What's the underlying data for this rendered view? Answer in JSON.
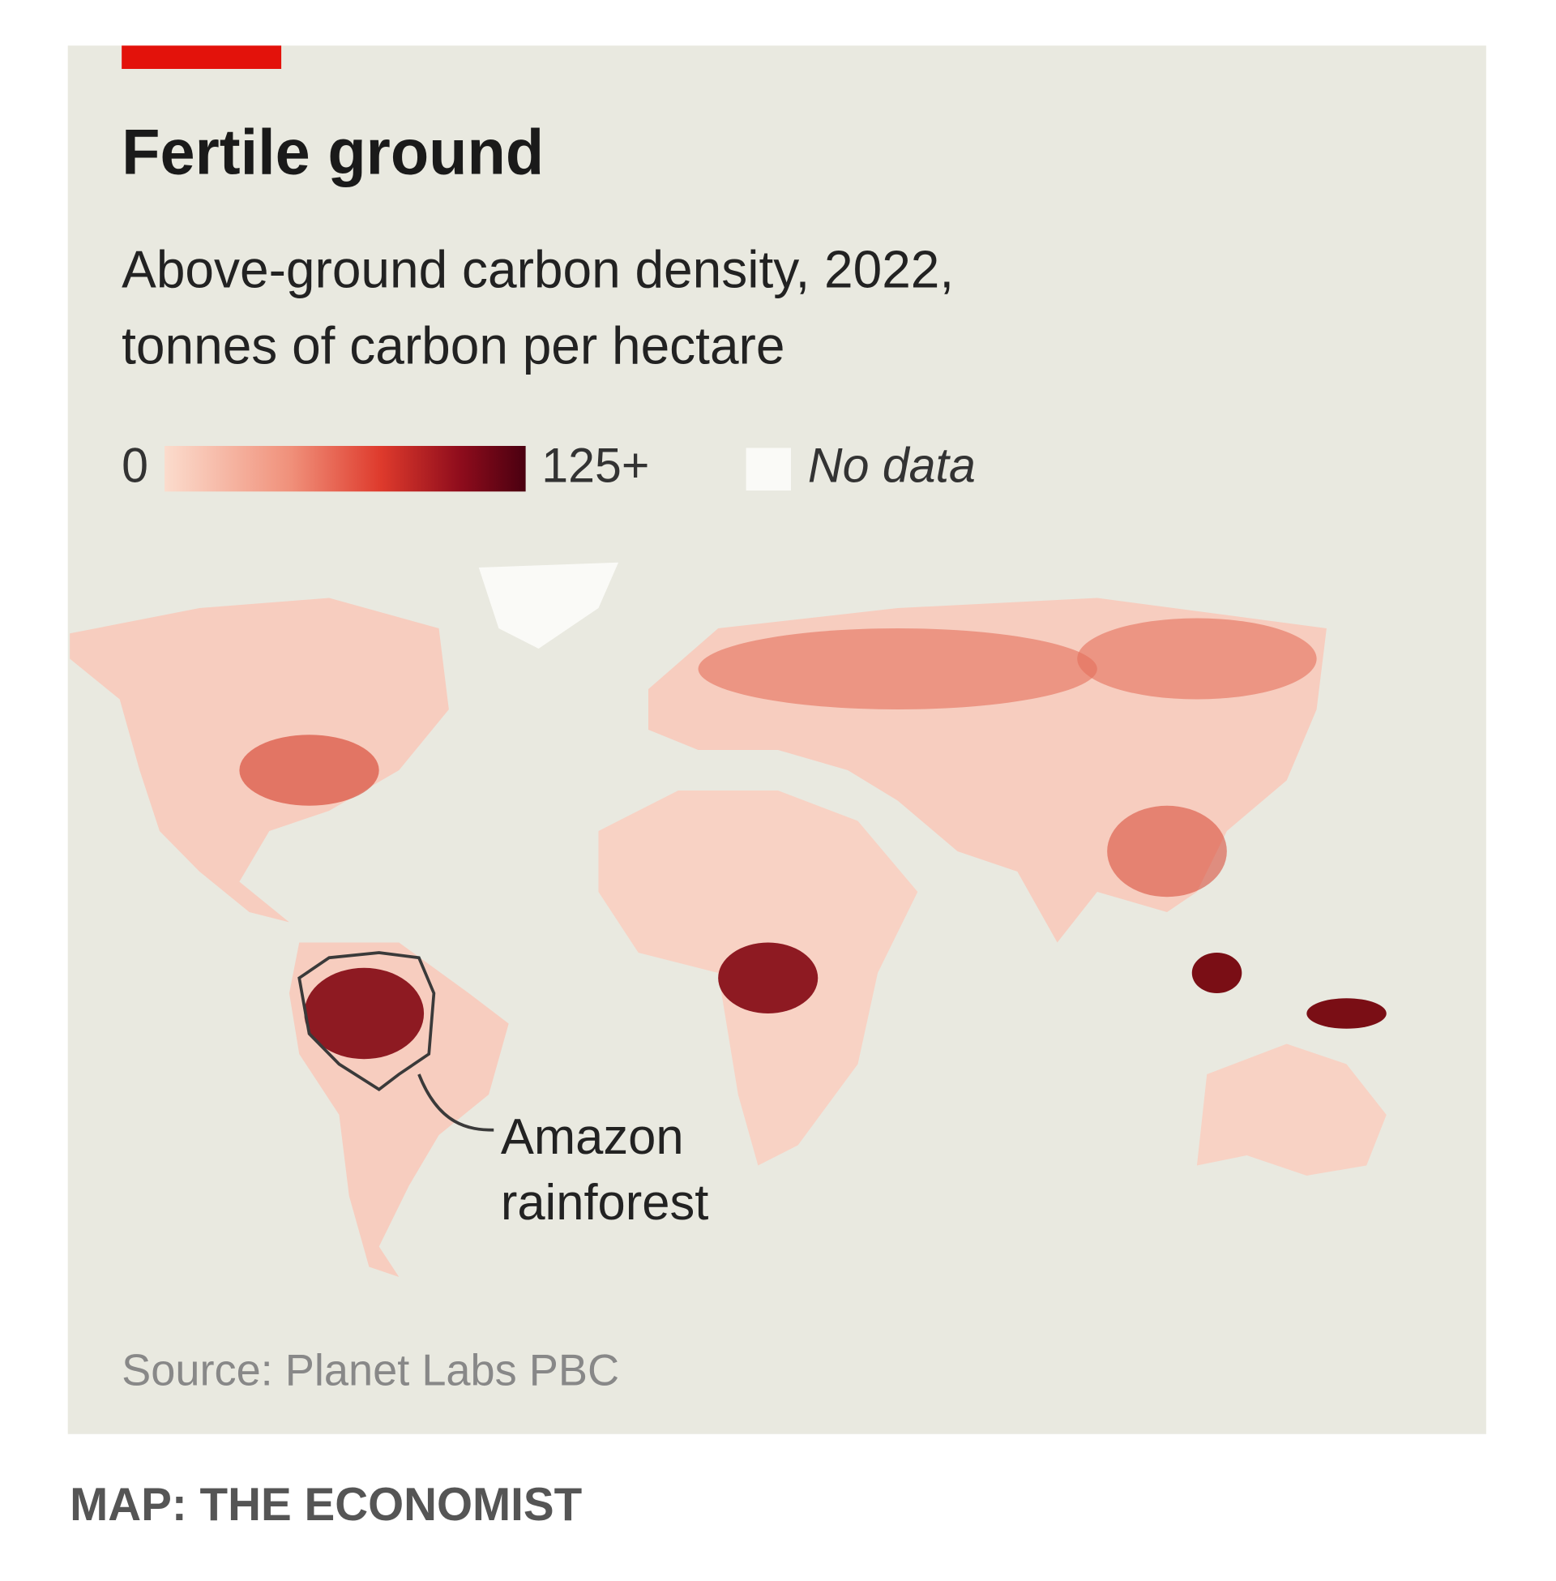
{
  "title": "Fertile ground",
  "subtitle": [
    "Above-ground carbon density, 2022,",
    "tonnes of carbon per hectare"
  ],
  "legend": {
    "min_label": "0",
    "max_label": "125+",
    "no_data": "No data"
  },
  "annotation": [
    "Amazon",
    "rainforest"
  ],
  "source": "Source: Planet Labs PBC",
  "credit": "MAP: THE ECONOMIST"
}
